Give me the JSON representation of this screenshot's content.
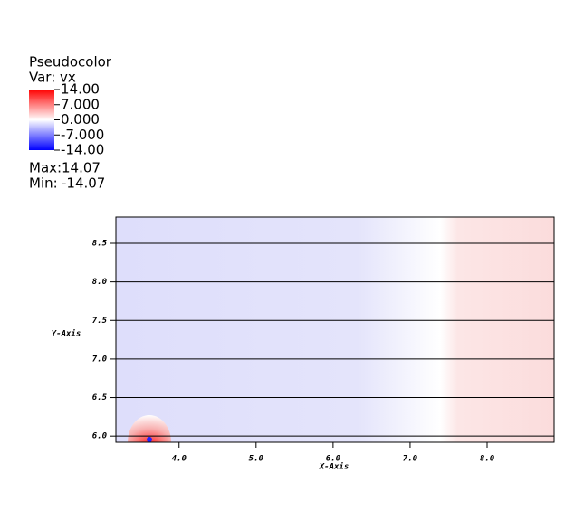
{
  "chart_data": {
    "type": "pseudocolor",
    "legend_title": "Pseudocolor",
    "variable": "Var: vx",
    "legend_range": [
      -14,
      14
    ],
    "legend_ticks": [
      {
        "value": 14,
        "label": "14.00"
      },
      {
        "value": 7,
        "label": "7.000"
      },
      {
        "value": 0,
        "label": "0.000"
      },
      {
        "value": -7,
        "label": "-7.000"
      },
      {
        "value": -14,
        "label": "-14.00"
      }
    ],
    "colormap": [
      "#0000ff",
      "#ffffff",
      "#ff0000"
    ],
    "max": {
      "label": "Max:",
      "value": 14.07
    },
    "min": {
      "label": "Min:",
      "value": -14.07
    },
    "xlabel": "X-Axis",
    "ylabel": "Y-Axis",
    "xlim": [
      3.18,
      8.87
    ],
    "ylim": [
      5.92,
      8.84
    ],
    "xticks": [
      {
        "value": 4,
        "label": "4.0"
      },
      {
        "value": 5,
        "label": "5.0"
      },
      {
        "value": 6,
        "label": "6.0"
      },
      {
        "value": 7,
        "label": "7.0"
      },
      {
        "value": 8,
        "label": "8.0"
      }
    ],
    "yticks": [
      {
        "value": 6,
        "label": "6.0"
      },
      {
        "value": 6.5,
        "label": "6.5"
      },
      {
        "value": 7,
        "label": "7.0"
      },
      {
        "value": 7.5,
        "label": "7.5"
      },
      {
        "value": 8,
        "label": "8.0"
      },
      {
        "value": 8.5,
        "label": "8.5"
      }
    ],
    "grid": true
  }
}
